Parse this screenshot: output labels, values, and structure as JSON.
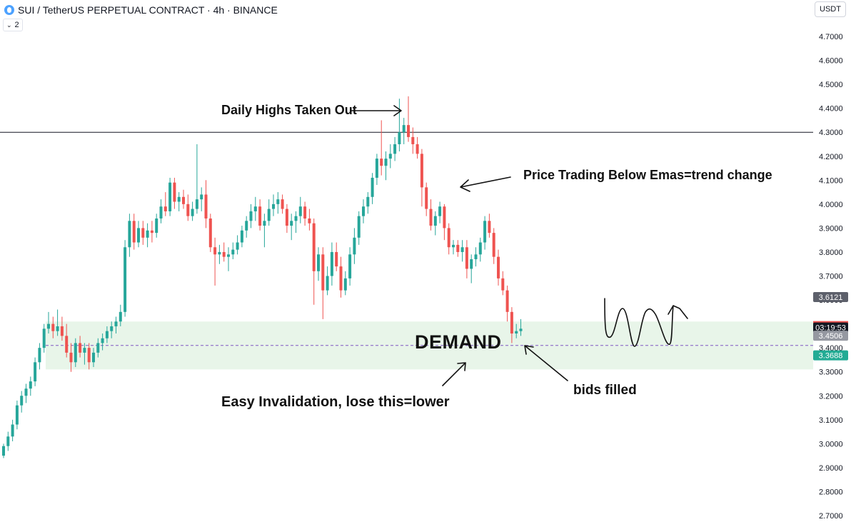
{
  "header": {
    "symbol": "SUI / TetherUS PERPETUAL CONTRACT · 4h · BINANCE",
    "collapse_count": "2",
    "currency": "USDT"
  },
  "annotations": {
    "daily_highs": "Daily Highs Taken Out",
    "price_trading": "Price Trading Below Emas=trend change",
    "demand": "DEMAND",
    "easy_invalidation": "Easy Invalidation, lose this=lower",
    "bids_filled": "bids filled"
  },
  "price_tags": {
    "upper": "3.6121",
    "countdown": "03:19:53",
    "mid": "3.4506",
    "lower": "3.3688"
  },
  "colors": {
    "up": "#26a69a",
    "down": "#ef5350",
    "demand_zone": "#e8f5e9",
    "tag_gray": "#5d606b",
    "tag_dark": "#131722",
    "tag_teal": "#22ab94"
  },
  "chart_data": {
    "type": "candlestick",
    "ylim": [
      2.7,
      4.7
    ],
    "y_ticks": [
      "4.7000",
      "4.6000",
      "4.5000",
      "4.4000",
      "4.3000",
      "4.2000",
      "4.1000",
      "4.0000",
      "3.9000",
      "3.8000",
      "3.7000",
      "3.6000",
      "3.5000",
      "3.4000",
      "3.3000",
      "3.2000",
      "3.1000",
      "3.0000",
      "2.9000",
      "2.8000",
      "2.7000"
    ],
    "horizontal_line": 4.3,
    "demand_zone": [
      3.31,
      3.51
    ],
    "dashed_level": 3.41,
    "ohlc": [
      [
        2.95,
        3.0,
        2.94,
        2.99
      ],
      [
        2.99,
        3.05,
        2.97,
        3.03
      ],
      [
        3.03,
        3.1,
        3.01,
        3.08
      ],
      [
        3.08,
        3.18,
        3.06,
        3.16
      ],
      [
        3.16,
        3.22,
        3.13,
        3.2
      ],
      [
        3.2,
        3.25,
        3.17,
        3.23
      ],
      [
        3.23,
        3.28,
        3.2,
        3.26
      ],
      [
        3.26,
        3.36,
        3.24,
        3.34
      ],
      [
        3.34,
        3.42,
        3.31,
        3.4
      ],
      [
        3.4,
        3.5,
        3.38,
        3.48
      ],
      [
        3.48,
        3.55,
        3.46,
        3.5
      ],
      [
        3.5,
        3.53,
        3.44,
        3.47
      ],
      [
        3.47,
        3.56,
        3.45,
        3.49
      ],
      [
        3.49,
        3.53,
        3.43,
        3.45
      ],
      [
        3.45,
        3.5,
        3.36,
        3.38
      ],
      [
        3.38,
        3.42,
        3.3,
        3.34
      ],
      [
        3.34,
        3.44,
        3.32,
        3.42
      ],
      [
        3.42,
        3.45,
        3.36,
        3.38
      ],
      [
        3.38,
        3.42,
        3.33,
        3.4
      ],
      [
        3.4,
        3.42,
        3.31,
        3.34
      ],
      [
        3.34,
        3.4,
        3.32,
        3.38
      ],
      [
        3.38,
        3.44,
        3.36,
        3.42
      ],
      [
        3.42,
        3.46,
        3.39,
        3.44
      ],
      [
        3.44,
        3.49,
        3.42,
        3.47
      ],
      [
        3.47,
        3.51,
        3.44,
        3.49
      ],
      [
        3.49,
        3.53,
        3.46,
        3.51
      ],
      [
        3.51,
        3.58,
        3.49,
        3.55
      ],
      [
        3.55,
        3.85,
        3.53,
        3.82
      ],
      [
        3.82,
        3.96,
        3.78,
        3.93
      ],
      [
        3.93,
        3.96,
        3.81,
        3.84
      ],
      [
        3.84,
        3.93,
        3.82,
        3.9
      ],
      [
        3.9,
        3.93,
        3.83,
        3.86
      ],
      [
        3.86,
        3.92,
        3.82,
        3.89
      ],
      [
        3.89,
        3.93,
        3.84,
        3.88
      ],
      [
        3.88,
        3.96,
        3.86,
        3.94
      ],
      [
        3.94,
        4.02,
        3.92,
        3.99
      ],
      [
        3.99,
        4.05,
        3.95,
        3.97
      ],
      [
        3.97,
        4.11,
        3.95,
        4.09
      ],
      [
        4.09,
        4.11,
        3.98,
        4.01
      ],
      [
        4.01,
        4.05,
        3.97,
        4.03
      ],
      [
        4.03,
        4.06,
        3.98,
        4.0
      ],
      [
        4.0,
        4.04,
        3.93,
        3.95
      ],
      [
        3.95,
        4.01,
        3.93,
        3.98
      ],
      [
        3.98,
        4.25,
        3.96,
        4.02
      ],
      [
        4.02,
        4.07,
        3.97,
        4.04
      ],
      [
        4.04,
        4.1,
        3.9,
        3.94
      ],
      [
        3.94,
        3.96,
        3.8,
        3.82
      ],
      [
        3.82,
        3.86,
        3.66,
        3.79
      ],
      [
        3.79,
        3.83,
        3.75,
        3.8
      ],
      [
        3.8,
        3.84,
        3.76,
        3.78
      ],
      [
        3.78,
        3.82,
        3.72,
        3.79
      ],
      [
        3.79,
        3.84,
        3.77,
        3.81
      ],
      [
        3.81,
        3.87,
        3.79,
        3.84
      ],
      [
        3.84,
        3.91,
        3.82,
        3.89
      ],
      [
        3.89,
        3.95,
        3.86,
        3.93
      ],
      [
        3.93,
        4.0,
        3.9,
        3.97
      ],
      [
        3.97,
        4.03,
        3.93,
        3.99
      ],
      [
        3.99,
        4.02,
        3.89,
        3.91
      ],
      [
        3.91,
        3.96,
        3.82,
        3.93
      ],
      [
        3.93,
        4.02,
        3.91,
        3.98
      ],
      [
        3.98,
        4.04,
        3.95,
        4.0
      ],
      [
        4.0,
        4.05,
        3.96,
        4.02
      ],
      [
        4.02,
        4.04,
        3.96,
        3.98
      ],
      [
        3.98,
        4.0,
        3.88,
        3.91
      ],
      [
        3.91,
        3.96,
        3.85,
        3.93
      ],
      [
        3.93,
        3.97,
        3.88,
        3.95
      ],
      [
        3.95,
        4.03,
        3.92,
        3.99
      ],
      [
        3.99,
        4.01,
        3.91,
        3.94
      ],
      [
        3.94,
        3.98,
        3.89,
        3.92
      ],
      [
        3.92,
        3.94,
        3.58,
        3.72
      ],
      [
        3.72,
        3.82,
        3.68,
        3.79
      ],
      [
        3.79,
        3.82,
        3.52,
        3.64
      ],
      [
        3.64,
        3.74,
        3.62,
        3.7
      ],
      [
        3.7,
        3.84,
        3.66,
        3.8
      ],
      [
        3.8,
        3.84,
        3.72,
        3.74
      ],
      [
        3.74,
        3.78,
        3.61,
        3.64
      ],
      [
        3.64,
        3.72,
        3.62,
        3.69
      ],
      [
        3.69,
        3.82,
        3.66,
        3.79
      ],
      [
        3.79,
        3.9,
        3.75,
        3.86
      ],
      [
        3.86,
        3.97,
        3.83,
        3.95
      ],
      [
        3.95,
        4.02,
        3.92,
        3.99
      ],
      [
        3.99,
        4.05,
        3.96,
        4.03
      ],
      [
        4.03,
        4.13,
        4.0,
        4.11
      ],
      [
        4.11,
        4.21,
        4.08,
        4.19
      ],
      [
        4.19,
        4.35,
        4.12,
        4.16
      ],
      [
        4.16,
        4.22,
        4.1,
        4.19
      ],
      [
        4.19,
        4.25,
        4.15,
        4.21
      ],
      [
        4.21,
        4.28,
        4.18,
        4.25
      ],
      [
        4.25,
        4.44,
        4.22,
        4.3
      ],
      [
        4.3,
        4.36,
        4.25,
        4.33
      ],
      [
        4.33,
        4.45,
        4.26,
        4.28
      ],
      [
        4.28,
        4.32,
        4.21,
        4.25
      ],
      [
        4.25,
        4.28,
        4.19,
        4.21
      ],
      [
        4.21,
        4.23,
        3.99,
        4.07
      ],
      [
        4.07,
        4.09,
        3.95,
        3.98
      ],
      [
        3.98,
        4.02,
        3.89,
        3.91
      ],
      [
        3.91,
        3.97,
        3.87,
        3.95
      ],
      [
        3.95,
        4.01,
        3.92,
        3.99
      ],
      [
        3.99,
        4.0,
        3.85,
        3.9
      ],
      [
        3.9,
        3.92,
        3.79,
        3.82
      ],
      [
        3.82,
        3.85,
        3.79,
        3.83
      ],
      [
        3.83,
        3.85,
        3.78,
        3.8
      ],
      [
        3.8,
        3.85,
        3.76,
        3.82
      ],
      [
        3.82,
        3.85,
        3.69,
        3.73
      ],
      [
        3.73,
        3.79,
        3.67,
        3.77
      ],
      [
        3.77,
        3.82,
        3.74,
        3.79
      ],
      [
        3.79,
        3.86,
        3.76,
        3.84
      ],
      [
        3.84,
        3.95,
        3.81,
        3.93
      ],
      [
        3.93,
        3.96,
        3.86,
        3.88
      ],
      [
        3.88,
        3.9,
        3.75,
        3.78
      ],
      [
        3.78,
        3.81,
        3.66,
        3.69
      ],
      [
        3.69,
        3.72,
        3.62,
        3.64
      ],
      [
        3.64,
        3.66,
        3.51,
        3.55
      ],
      [
        3.55,
        3.57,
        3.42,
        3.46
      ],
      [
        3.46,
        3.5,
        3.44,
        3.47
      ],
      [
        3.47,
        3.52,
        3.45,
        3.48
      ]
    ]
  }
}
